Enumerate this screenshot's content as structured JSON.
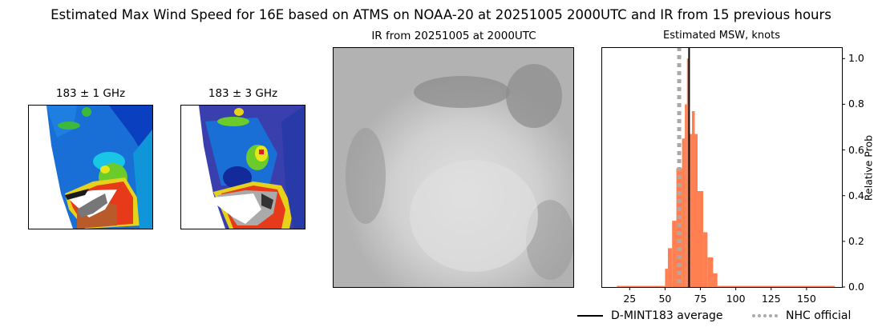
{
  "figure": {
    "suptitle": "Estimated Max Wind Speed for 16E based on ATMS on NOAA-20 at 20251005 2000UTC and IR from 15 previous hours"
  },
  "panels": {
    "mw1": {
      "title": "183 ± 1 GHz"
    },
    "mw2": {
      "title": "183 ± 3 GHz"
    },
    "ir": {
      "title": "IR from 20251005 at 2000UTC"
    },
    "hist": {
      "title": "Estimated MSW, knots",
      "ylabel": "Relative Prob"
    }
  },
  "legend": {
    "items": [
      {
        "label": "D-MINT183 average",
        "style": "solid",
        "color": "#000000"
      },
      {
        "label": "NHC official",
        "style": "dotted",
        "color": "#aaaaaa"
      }
    ]
  },
  "colors": {
    "bar": "#ff7f50",
    "average_line": "#000000",
    "official_line": "#aaaaaa"
  },
  "chart_data": {
    "type": "bar",
    "title": "Estimated MSW, knots",
    "xlabel": "",
    "ylabel": "Relative Prob",
    "xlim": [
      5,
      175
    ],
    "ylim": [
      0,
      1.05
    ],
    "xticks": [
      25,
      50,
      75,
      100,
      125,
      150
    ],
    "yticks": [
      0.0,
      0.2,
      0.4,
      0.6,
      0.8,
      1.0
    ],
    "ytick_labels": [
      "0.0",
      "0.2",
      "0.4",
      "0.6",
      "0.8",
      "1.0"
    ],
    "y_axis_position": "right",
    "bins": [
      {
        "x0": 16,
        "x1": 50,
        "value": 0.005
      },
      {
        "x0": 50,
        "x1": 52,
        "value": 0.08
      },
      {
        "x0": 52,
        "x1": 55,
        "value": 0.17
      },
      {
        "x0": 55,
        "x1": 58,
        "value": 0.29
      },
      {
        "x0": 58,
        "x1": 62,
        "value": 0.52
      },
      {
        "x0": 62,
        "x1": 64,
        "value": 0.65
      },
      {
        "x0": 64,
        "x1": 65.5,
        "value": 0.8
      },
      {
        "x0": 65.5,
        "x1": 67,
        "value": 1.0
      },
      {
        "x0": 67,
        "x1": 69,
        "value": 0.67
      },
      {
        "x0": 69,
        "x1": 71,
        "value": 0.77
      },
      {
        "x0": 71,
        "x1": 73,
        "value": 0.67
      },
      {
        "x0": 73,
        "x1": 77,
        "value": 0.42
      },
      {
        "x0": 77,
        "x1": 80,
        "value": 0.24
      },
      {
        "x0": 80,
        "x1": 84,
        "value": 0.13
      },
      {
        "x0": 84,
        "x1": 87,
        "value": 0.06
      },
      {
        "x0": 87,
        "x1": 170,
        "value": 0.005
      }
    ],
    "vlines": [
      {
        "name": "D-MINT183 average",
        "x": 67,
        "style": "solid",
        "color": "#000000"
      },
      {
        "name": "NHC official",
        "x": 60,
        "style": "dotted",
        "color": "#aaaaaa"
      }
    ],
    "legend_position": "below"
  }
}
